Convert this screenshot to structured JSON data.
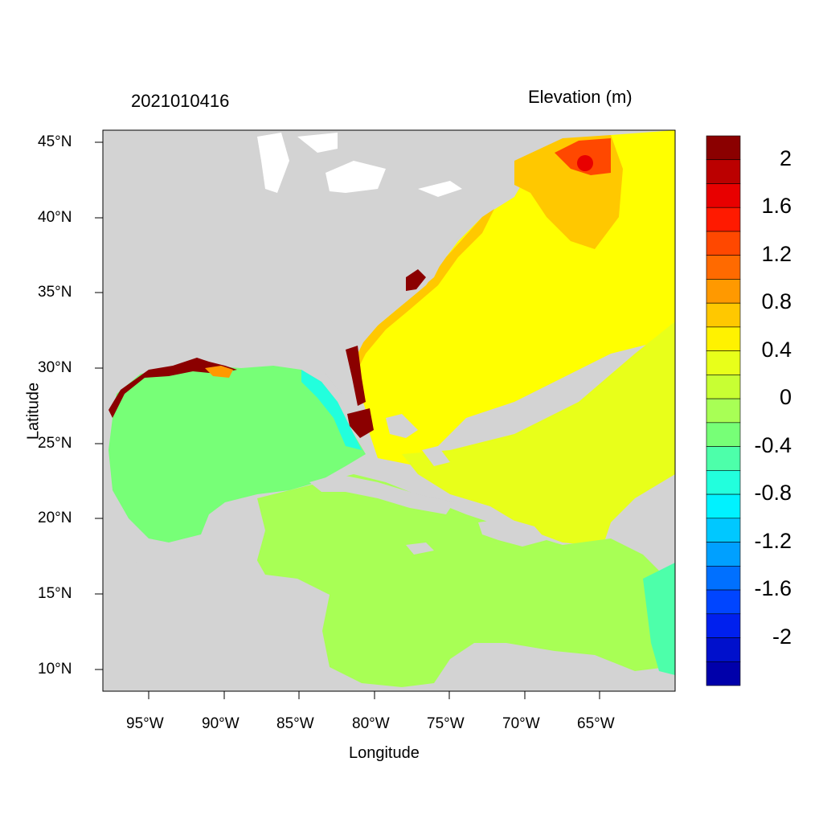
{
  "header": {
    "timestamp": "2021010416",
    "variable_title": "Elevation (m)"
  },
  "axes": {
    "xlabel": "Longitude",
    "ylabel": "Latitude",
    "xticks": [
      "95°W",
      "90°W",
      "85°W",
      "80°W",
      "75°W",
      "70°W",
      "65°W"
    ],
    "yticks": [
      "45°N",
      "40°N",
      "35°N",
      "30°N",
      "25°N",
      "20°N",
      "15°N",
      "10°N"
    ],
    "lon_range": [
      -98,
      -60
    ],
    "lat_range": [
      8.5,
      46
    ]
  },
  "colorbar": {
    "labels": [
      "2",
      "1.6",
      "1.2",
      "0.8",
      "0.4",
      "0",
      "-0.4",
      "-0.8",
      "-1.2",
      "-1.6",
      "-2"
    ],
    "colors": [
      "#8b0000",
      "#bb0000",
      "#e80000",
      "#ff1a00",
      "#ff4800",
      "#ff6a00",
      "#ff9900",
      "#ffc800",
      "#fff200",
      "#e8ff1a",
      "#c8ff33",
      "#a8ff55",
      "#77ff77",
      "#4dffaa",
      "#22ffdd",
      "#00f2ff",
      "#00c8ff",
      "#00a0ff",
      "#0070ff",
      "#0045ff",
      "#0020ee",
      "#0010cc",
      "#0000aa"
    ]
  },
  "colors": {
    "land": "#d3d3d3",
    "atlantic": "#ffff00",
    "gulf": "#77ff77",
    "caribbean": "#a8ff55",
    "surge": "#8b0000"
  }
}
